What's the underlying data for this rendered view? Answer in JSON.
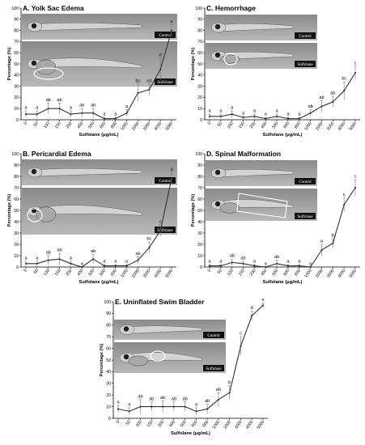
{
  "inset_labels": {
    "control": "Control",
    "treatment": "Sulfolane"
  },
  "chart_data": [
    {
      "type": "line",
      "title": "A. Yolk Sac Edema",
      "xlabel": "Sulfolane (μg/mL)",
      "ylabel": "Percentage (%)",
      "ylim": [
        0,
        100
      ],
      "yticks": [
        0,
        10,
        20,
        30,
        40,
        50,
        60,
        70,
        80,
        90,
        100
      ],
      "categories": [
        "0",
        "50",
        "100",
        "150",
        "200",
        "400",
        "500",
        "600",
        "800",
        "1000",
        "2000",
        "3000",
        "4000",
        "5000"
      ],
      "values": [
        5,
        5,
        10,
        10,
        5,
        6,
        6,
        1,
        1,
        6,
        24,
        27,
        45,
        80
      ],
      "errors": [
        3,
        3,
        5,
        5,
        3,
        4,
        4,
        1,
        1,
        3,
        8,
        5,
        10,
        5
      ],
      "significance": [
        "a",
        "a",
        "ab",
        "ab",
        "a",
        "ab",
        "ab",
        "a",
        "a",
        "a",
        "bc",
        "cd",
        "d",
        "e"
      ],
      "color": "#333333"
    },
    {
      "type": "line",
      "title": "B. Pericardial Edema",
      "xlabel": "Sulfolane (μg/mL)",
      "ylabel": "Percentage (%)",
      "ylim": [
        0,
        100
      ],
      "yticks": [
        0,
        10,
        20,
        30,
        40,
        50,
        60,
        70,
        80,
        90,
        100
      ],
      "categories": [
        "0",
        "50",
        "100",
        "150",
        "200",
        "400",
        "500",
        "600",
        "800",
        "1000",
        "2000",
        "3000",
        "4000",
        "5000"
      ],
      "values": [
        3,
        3,
        6,
        7,
        3,
        0,
        7,
        1,
        1,
        1,
        6,
        17,
        32,
        78
      ],
      "errors": [
        2,
        2,
        4,
        5,
        2,
        0,
        4,
        1,
        1,
        1,
        3,
        5,
        5,
        5
      ],
      "significance": [
        "a",
        "a",
        "ab",
        "ab",
        "a",
        "a",
        "ab",
        "a",
        "a",
        "a",
        "ab",
        "bc",
        "c",
        "d"
      ],
      "color": "#333333"
    },
    {
      "type": "line",
      "title": "C. Hemorrhage",
      "xlabel": "Sulfolane (μg/mL)",
      "ylabel": "Percentage (%)",
      "ylim": [
        0,
        100
      ],
      "yticks": [
        0,
        10,
        20,
        30,
        40,
        50,
        60,
        70,
        80,
        90,
        100
      ],
      "categories": [
        "0",
        "50",
        "100",
        "150",
        "200",
        "400",
        "500",
        "600",
        "800",
        "1000",
        "2000",
        "3000",
        "4000",
        "5000"
      ],
      "values": [
        3,
        3,
        5,
        2,
        3,
        1,
        3,
        1,
        1,
        6,
        12,
        16,
        26,
        42
      ],
      "errors": [
        2,
        2,
        3,
        1,
        2,
        1,
        2,
        1,
        1,
        3,
        5,
        5,
        8,
        6
      ],
      "significance": [
        "a",
        "a",
        "a",
        "a",
        "a",
        "a",
        "a",
        "a",
        "a",
        "ab",
        "ab",
        "ab",
        "bc",
        "c"
      ],
      "color": "#333333"
    },
    {
      "type": "line",
      "title": "D. Spinal Malformation",
      "xlabel": "Sulfolane (μg/mL)",
      "ylabel": "Percentage (%)",
      "ylim": [
        0,
        100
      ],
      "yticks": [
        0,
        10,
        20,
        30,
        40,
        50,
        60,
        70,
        80,
        90,
        100
      ],
      "categories": [
        "0",
        "50",
        "100",
        "150",
        "200",
        "400",
        "500",
        "600",
        "800",
        "1000",
        "2000",
        "3000",
        "4000",
        "5000"
      ],
      "values": [
        1,
        1,
        4,
        3,
        1,
        0,
        3,
        1,
        1,
        0,
        15,
        21,
        55,
        70
      ],
      "errors": [
        1,
        1,
        3,
        2,
        1,
        0,
        3,
        1,
        1,
        0,
        5,
        4,
        6,
        7
      ],
      "significance": [
        "a",
        "a",
        "ab",
        "ab",
        "a",
        "a",
        "ab",
        "a",
        "a",
        "a",
        "a",
        "b",
        "c",
        "c"
      ],
      "color": "#333333"
    },
    {
      "type": "line",
      "title": "E. Uninflated Swim Bladder",
      "xlabel": "Sulfolane (μg/mL)",
      "ylabel": "Percentage (%)",
      "ylim": [
        0,
        100
      ],
      "yticks": [
        0,
        10,
        20,
        30,
        40,
        50,
        60,
        70,
        80,
        90,
        100
      ],
      "categories": [
        "0",
        "50",
        "100",
        "150",
        "200",
        "400",
        "500",
        "600",
        "800",
        "1000",
        "2000",
        "3000",
        "4000",
        "5000"
      ],
      "values": [
        8,
        6,
        10,
        10,
        10,
        10,
        10,
        6,
        8,
        16,
        22,
        62,
        88,
        97
      ],
      "errors": [
        3,
        3,
        6,
        4,
        5,
        4,
        4,
        3,
        4,
        6,
        6,
        8,
        4,
        2
      ],
      "significance": [
        "a",
        "a",
        "ab",
        "ab",
        "ab",
        "ab",
        "ab",
        "a",
        "ab",
        "ab",
        "b",
        "c",
        "d",
        "e"
      ],
      "color": "#333333"
    }
  ]
}
